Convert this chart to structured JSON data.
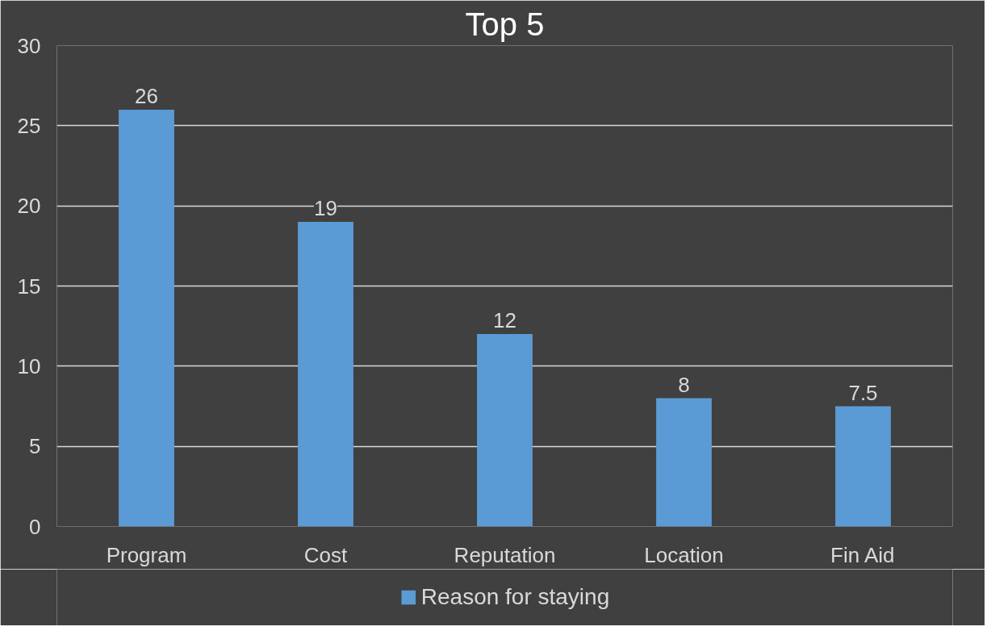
{
  "chart_data": {
    "type": "bar",
    "title": "Top 5",
    "categories": [
      "Program",
      "Cost",
      "Reputation",
      "Location",
      "Fin Aid"
    ],
    "series": [
      {
        "name": "Reason for staying",
        "color": "#5b9bd5",
        "values": [
          26,
          19,
          12,
          8,
          7.5
        ]
      }
    ],
    "ylim": [
      0,
      30
    ],
    "yticks": [
      0,
      5,
      10,
      15,
      20,
      25,
      30
    ],
    "grid": "y",
    "legend": "bottom",
    "data_labels": true
  }
}
